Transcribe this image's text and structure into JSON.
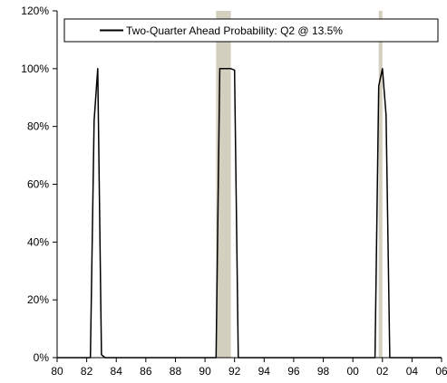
{
  "chart_data": {
    "type": "line",
    "title": "",
    "xlabel": "",
    "ylabel": "",
    "xlim": [
      1980,
      2006
    ],
    "ylim": [
      0,
      120
    ],
    "x_ticks": [
      1980,
      1982,
      1984,
      1986,
      1988,
      1990,
      1992,
      1994,
      1996,
      1998,
      2000,
      2002,
      2004,
      2006
    ],
    "x_tick_labels": [
      "80",
      "82",
      "84",
      "86",
      "88",
      "90",
      "92",
      "94",
      "96",
      "98",
      "00",
      "02",
      "04",
      "06"
    ],
    "y_ticks": [
      0,
      20,
      40,
      60,
      80,
      100,
      120
    ],
    "y_tick_labels": [
      "0%",
      "20%",
      "40%",
      "60%",
      "80%",
      "100%",
      "120%"
    ],
    "grid": false,
    "legend_position": "top",
    "line_color": "#000000",
    "shade_color": "#d4d0c0",
    "recession_periods": [
      [
        1990.75,
        1991.75
      ],
      [
        2001.75,
        2002.0
      ]
    ],
    "series": [
      {
        "name": "Two-Quarter Ahead Probability:  Q2 @ 13.5%",
        "x": [
          1980,
          1982.25,
          1982.5,
          1982.75,
          1983.0,
          1983.25,
          1990.5,
          1990.75,
          1991.0,
          1991.25,
          1991.5,
          1991.75,
          1992.0,
          1992.25,
          2001.25,
          2001.5,
          2001.75,
          2002.0,
          2002.25,
          2002.5,
          2006
        ],
        "values": [
          0,
          0,
          82,
          100,
          1,
          0,
          0,
          0,
          100,
          100,
          100,
          100,
          99.5,
          0,
          0,
          0,
          94,
          100,
          84,
          0,
          0
        ]
      }
    ]
  }
}
